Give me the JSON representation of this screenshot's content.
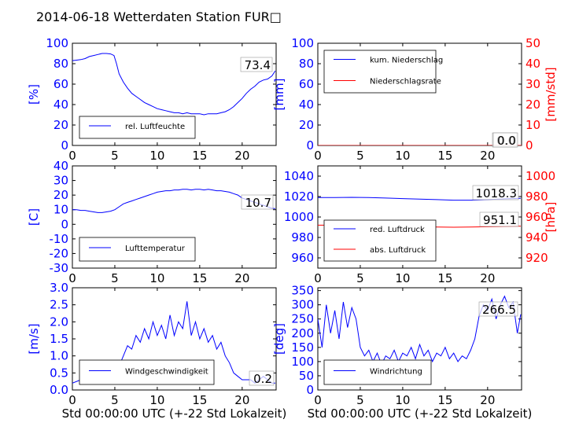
{
  "title": "2014-06-18 Wetterdaten Station FUR□",
  "colors": {
    "primary": "#0000ff",
    "secondary": "#ff0000",
    "black": "#000000"
  },
  "chart_data": [
    {
      "type": "line",
      "xlabel": "",
      "ylabel": "[%]",
      "xlim": [
        0,
        24
      ],
      "ylim": [
        0,
        100
      ],
      "xticks": [
        0,
        5,
        10,
        15,
        20
      ],
      "yticks": [
        0,
        20,
        40,
        60,
        80,
        100
      ],
      "legend": {
        "position": "lower-left",
        "entries": [
          "rel. Luftfeuchte"
        ]
      },
      "annotations": [
        "73.4"
      ],
      "series": [
        {
          "name": "rel. Luftfeuchte",
          "color": "#0000ff",
          "x": [
            0,
            0.5,
            1,
            1.5,
            2,
            2.5,
            3,
            3.5,
            4,
            4.5,
            4.9,
            5.2,
            5.5,
            6,
            6.5,
            7,
            7.5,
            8,
            8.5,
            9,
            9.5,
            10,
            10.5,
            11,
            11.5,
            12,
            12.5,
            13,
            13.5,
            14,
            14.5,
            15,
            15.5,
            16,
            16.5,
            17,
            17.5,
            18,
            18.5,
            19,
            19.5,
            20,
            20.5,
            21,
            21.5,
            22,
            22.5,
            23,
            23.5,
            23.9
          ],
          "y": [
            83,
            83.5,
            84,
            85,
            87,
            88,
            89,
            90,
            90,
            89.5,
            88,
            80,
            70,
            62,
            56,
            51,
            48,
            45,
            42,
            40,
            38,
            36,
            35,
            34,
            33,
            32,
            32,
            31,
            32,
            31,
            31,
            31,
            30,
            31,
            31,
            31,
            32,
            33,
            35,
            38,
            42,
            46,
            51,
            55,
            58,
            62,
            64,
            65,
            68,
            73
          ]
        }
      ]
    },
    {
      "type": "line",
      "xlabel": "",
      "ylabel": "[mm]",
      "y2label": "[mm/std]",
      "xlim": [
        0,
        24
      ],
      "ylim": [
        0,
        100
      ],
      "y2lim": [
        0,
        50
      ],
      "xticks": [
        0,
        5,
        10,
        15,
        20
      ],
      "yticks": [
        0,
        20,
        40,
        60,
        80,
        100
      ],
      "y2ticks": [
        0,
        10,
        20,
        30,
        40,
        50
      ],
      "legend": {
        "position": "top-left",
        "entries": [
          "kum. Niederschlag",
          "Niederschlagsrate"
        ]
      },
      "annotations": [
        "0.0",
        "0.0"
      ],
      "series": [
        {
          "name": "kum. Niederschlag",
          "color": "#0000ff",
          "axis": "left",
          "x": [
            0,
            24
          ],
          "y": [
            0,
            0
          ]
        },
        {
          "name": "Niederschlagsrate",
          "color": "#ff0000",
          "axis": "right",
          "x": [
            0,
            24
          ],
          "y": [
            0,
            0
          ]
        }
      ]
    },
    {
      "type": "line",
      "xlabel": "",
      "ylabel": "[C]",
      "xlim": [
        0,
        24
      ],
      "ylim": [
        -30,
        40
      ],
      "xticks": [
        0,
        5,
        10,
        15,
        20
      ],
      "yticks": [
        -30,
        -20,
        -10,
        0,
        10,
        20,
        30,
        40
      ],
      "legend": {
        "position": "lower-left",
        "entries": [
          "Lufttemperatur"
        ]
      },
      "annotations": [
        "10.7"
      ],
      "series": [
        {
          "name": "Lufttemperatur",
          "color": "#0000ff",
          "x": [
            0,
            0.5,
            1,
            1.5,
            2,
            2.5,
            3,
            3.5,
            4,
            4.5,
            5,
            5.5,
            6,
            6.5,
            7,
            7.5,
            8,
            8.5,
            9,
            9.5,
            10,
            10.5,
            11,
            11.5,
            12,
            12.5,
            13,
            13.5,
            14,
            14.5,
            15,
            15.5,
            16,
            16.5,
            17,
            17.5,
            18,
            18.5,
            19,
            19.5,
            20,
            20.5,
            21,
            21.5,
            22,
            22.5,
            23,
            23.5,
            23.9
          ],
          "y": [
            10,
            10,
            9.5,
            9.5,
            9,
            8.5,
            8,
            8,
            8.5,
            9,
            10,
            12,
            14,
            15,
            16,
            17,
            18,
            19,
            20,
            21,
            22,
            22.5,
            23,
            23,
            23.5,
            23.5,
            24,
            24,
            23.5,
            24,
            24,
            23.5,
            24,
            23.5,
            23,
            23,
            22.5,
            22,
            21,
            20,
            18,
            17,
            16,
            15,
            14,
            13,
            12,
            11,
            10.7
          ]
        }
      ]
    },
    {
      "type": "line",
      "xlabel": "",
      "ylabel": "",
      "y2label": "[hPa]",
      "xlim": [
        0,
        24
      ],
      "ylim": [
        950,
        1050
      ],
      "y2lim": [
        910,
        1010
      ],
      "xticks": [
        0,
        5,
        10,
        15,
        20
      ],
      "yticks": [
        960,
        980,
        1000,
        1020,
        1040
      ],
      "y2ticks": [
        920,
        940,
        960,
        980,
        1000
      ],
      "legend": {
        "position": "lower-left",
        "entries": [
          "red. Luftdruck",
          "abs. Luftdruck"
        ]
      },
      "annotations": [
        "1018.3",
        "951.1"
      ],
      "series": [
        {
          "name": "red. Luftdruck",
          "color": "#0000ff",
          "axis": "left",
          "x": [
            0,
            2,
            4,
            6,
            8,
            10,
            12,
            14,
            16,
            18,
            20,
            22,
            23.9
          ],
          "y": [
            1019,
            1019,
            1019.2,
            1019,
            1018.5,
            1018,
            1017.5,
            1017,
            1016.5,
            1016.5,
            1017,
            1017.8,
            1018.3
          ]
        },
        {
          "name": "abs. Luftdruck",
          "color": "#ff0000",
          "axis": "right",
          "x": [
            0,
            2,
            4,
            6,
            8,
            10,
            12,
            14,
            16,
            18,
            20,
            22,
            23.9
          ],
          "y": [
            952,
            952,
            952.2,
            952,
            951.5,
            951,
            950.5,
            950.2,
            950,
            950.2,
            950.5,
            950.8,
            951.1
          ]
        }
      ]
    },
    {
      "type": "line",
      "xlabel": "Std 00:00:00 UTC (+-22 Std Lokalzeit)",
      "ylabel": "[m/s]",
      "xlim": [
        0,
        24
      ],
      "ylim": [
        0,
        3
      ],
      "xticks": [
        0,
        5,
        10,
        15,
        20
      ],
      "yticks": [
        0.0,
        0.5,
        1.0,
        1.5,
        2.0,
        2.5,
        3.0
      ],
      "legend": {
        "position": "lower-left",
        "entries": [
          "Windgeschwindigkeit"
        ]
      },
      "annotations": [
        "0.2"
      ],
      "series": [
        {
          "name": "Windgeschwindigkeit",
          "color": "#0000ff",
          "x": [
            0,
            1,
            2,
            3,
            4,
            4.5,
            5,
            5.5,
            6,
            6.5,
            7,
            7.5,
            8,
            8.5,
            9,
            9.5,
            10,
            10.5,
            11,
            11.5,
            12,
            12.5,
            13,
            13.5,
            14,
            14.5,
            15,
            15.5,
            16,
            16.5,
            17,
            17.5,
            18,
            18.5,
            19,
            19.5,
            20,
            20.5,
            21,
            21.5,
            22,
            22.5,
            23,
            23.5,
            23.9
          ],
          "y": [
            0.2,
            0.3,
            0.3,
            0.4,
            0.5,
            0.6,
            0.5,
            0.7,
            1.0,
            1.3,
            1.2,
            1.6,
            1.4,
            1.8,
            1.5,
            2.0,
            1.6,
            1.9,
            1.5,
            2.2,
            1.6,
            2.0,
            1.8,
            2.6,
            1.6,
            2.0,
            1.5,
            1.8,
            1.4,
            1.6,
            1.2,
            1.4,
            1.0,
            0.8,
            0.5,
            0.4,
            0.3,
            0.3,
            0.3,
            0.2,
            0.3,
            0.4,
            0.3,
            0.2,
            0.2
          ]
        }
      ]
    },
    {
      "type": "line",
      "xlabel": "Std 00:00:00 UTC (+-22 Std Lokalzeit)",
      "ylabel": "[deg]",
      "xlim": [
        0,
        24
      ],
      "ylim": [
        0,
        360
      ],
      "xticks": [
        0,
        5,
        10,
        15,
        20
      ],
      "yticks": [
        0,
        50,
        100,
        150,
        200,
        250,
        300,
        350
      ],
      "legend": {
        "position": "lower-left",
        "entries": [
          "Windrichtung"
        ]
      },
      "annotations": [
        "266.5"
      ],
      "series": [
        {
          "name": "Windrichtung",
          "color": "#0000ff",
          "x": [
            0,
            0.5,
            1,
            1.5,
            2,
            2.5,
            3,
            3.5,
            4,
            4.5,
            5,
            5.5,
            6,
            6.5,
            7,
            7.5,
            8,
            8.5,
            9,
            9.5,
            10,
            10.5,
            11,
            11.5,
            12,
            12.5,
            13,
            13.5,
            14,
            14.5,
            15,
            15.5,
            16,
            16.5,
            17,
            17.5,
            18,
            18.5,
            19,
            19.5,
            20,
            20.5,
            21,
            21.5,
            22,
            22.5,
            23,
            23.5,
            23.9
          ],
          "y": [
            250,
            150,
            300,
            200,
            280,
            180,
            310,
            220,
            290,
            250,
            150,
            120,
            140,
            100,
            130,
            90,
            120,
            110,
            140,
            100,
            130,
            120,
            150,
            110,
            160,
            120,
            140,
            100,
            130,
            120,
            150,
            110,
            130,
            100,
            120,
            110,
            140,
            180,
            260,
            300,
            280,
            320,
            250,
            300,
            330,
            290,
            310,
            200,
            266.5
          ]
        }
      ]
    }
  ]
}
